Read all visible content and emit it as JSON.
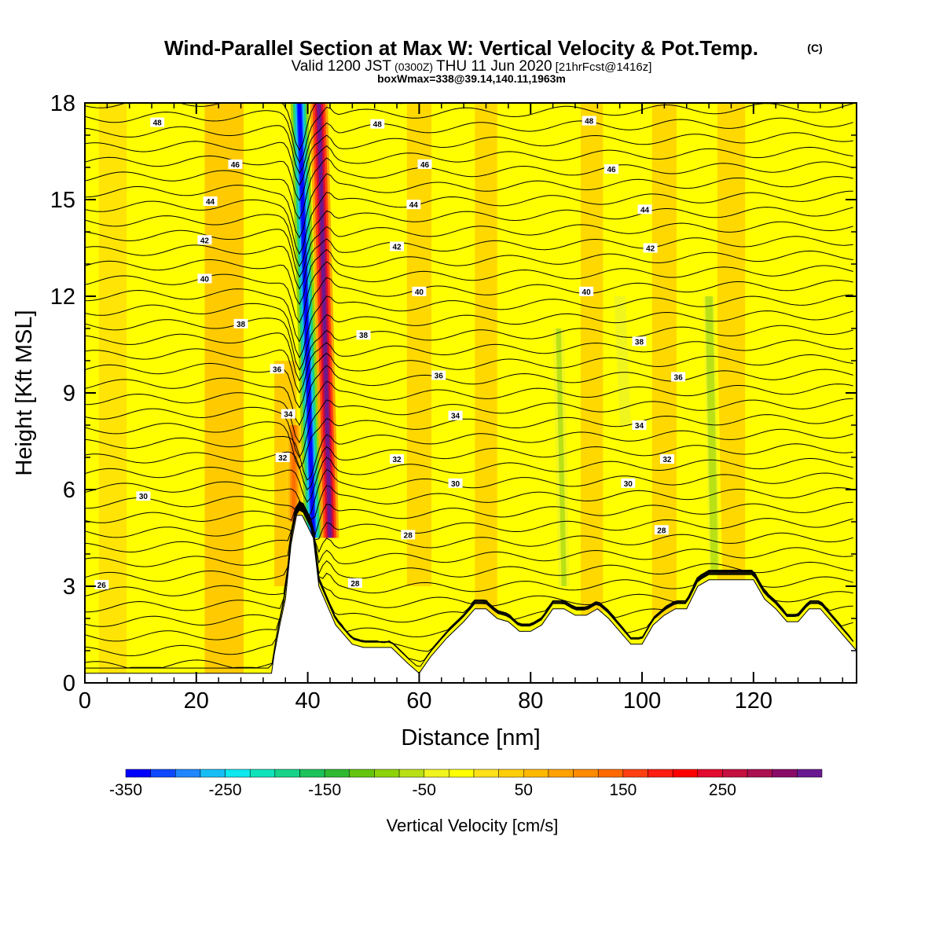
{
  "header": {
    "title": "Wind-Parallel Section at Max W: Vertical Velocity & Pot.Temp.",
    "title_unit": "(C)",
    "valid_prefix": "Valid 1200 JST",
    "valid_utc": "(0300Z)",
    "valid_date": "THU 11 Jun 2020",
    "forecast": "[21hrFcst@1416z]",
    "boxwmax": "boxWmax=338@39.14,140.11,1963m"
  },
  "chart_data": {
    "type": "heatmap",
    "xlabel": "Distance [nm]",
    "ylabel": "Height [Kft MSL]",
    "xlim": [
      0,
      138.5
    ],
    "ylim": [
      0,
      18
    ],
    "x_ticks": [
      0,
      20,
      40,
      60,
      80,
      100,
      120
    ],
    "y_ticks": [
      0,
      3,
      6,
      9,
      12,
      15,
      18
    ],
    "colorbar": {
      "label": "Vertical Velocity [cm/s]",
      "range": [
        -350,
        325
      ],
      "step": 25,
      "tick_labels": [
        "-350",
        "-250",
        "-150",
        "-50",
        "50",
        "150",
        "250"
      ],
      "tick_values": [
        -350,
        -250,
        -150,
        -50,
        50,
        150,
        250
      ],
      "colors": [
        "#0000ff",
        "#0d48ff",
        "#1f86ff",
        "#17bef5",
        "#0ee8ee",
        "#10e3b9",
        "#16d389",
        "#1cc25a",
        "#2fb932",
        "#66c50f",
        "#8ed20a",
        "#b8e015",
        "#f0f41f",
        "#ffff00",
        "#ffe11a",
        "#ffce0a",
        "#ffb800",
        "#ffa100",
        "#ff8a00",
        "#ff6a00",
        "#ff3f12",
        "#ff1c12",
        "#ff0000",
        "#e20a2e",
        "#c4103f",
        "#ab1050",
        "#8a0a67",
        "#6a1890"
      ]
    },
    "terrain_profile": {
      "x": [
        0,
        33.5,
        34,
        35,
        36,
        37,
        38,
        39,
        41,
        42,
        43,
        44,
        45,
        48,
        50,
        55,
        58,
        60,
        62,
        65,
        68,
        70,
        72,
        74,
        76,
        78,
        80,
        82,
        84,
        86,
        88,
        90,
        92,
        94,
        96,
        98,
        100,
        102,
        104,
        106,
        108,
        110,
        112,
        114,
        116,
        118,
        120,
        122,
        124,
        126,
        128,
        130,
        132,
        134,
        136,
        138.5
      ],
      "height_kft": [
        0.3,
        0.3,
        0.9,
        1.8,
        2.6,
        4.3,
        5.2,
        5.2,
        4.5,
        3.0,
        2.6,
        2.2,
        1.8,
        1.2,
        1.1,
        1.1,
        0.6,
        0.3,
        0.8,
        1.4,
        1.9,
        2.3,
        2.3,
        2.0,
        1.9,
        1.6,
        1.6,
        1.8,
        2.3,
        2.3,
        2.1,
        2.1,
        2.3,
        2.0,
        1.6,
        1.2,
        1.2,
        1.8,
        2.1,
        2.3,
        2.3,
        3.0,
        3.2,
        3.2,
        3.2,
        3.2,
        3.2,
        2.6,
        2.3,
        1.9,
        1.9,
        2.3,
        2.3,
        1.9,
        1.5,
        1.0
      ]
    },
    "velocity_features": [
      {
        "name": "upslope updraft",
        "x_center": 37.5,
        "z_bottom": 5,
        "z_top": 8,
        "w": 140
      },
      {
        "name": "downdraft",
        "x_bottom": 41,
        "x_top": 38.5,
        "z_bottom": 4.5,
        "z_top": 18,
        "w": -350
      },
      {
        "name": "max updraft",
        "x_bottom": 44,
        "x_top": 42,
        "z_bottom": 4.5,
        "z_top": 18,
        "w": 338
      },
      {
        "name": "weak downdraft",
        "x_center": 86,
        "z_bottom": 3,
        "z_top": 11,
        "w": -60
      },
      {
        "name": "weak downdraft",
        "x_center": 97,
        "z_bottom": 8,
        "z_top": 12,
        "w": -50
      },
      {
        "name": "weak downdraft",
        "x_center": 113,
        "z_bottom": 3.5,
        "z_top": 12,
        "w": -70
      }
    ],
    "theta_contours": {
      "label_values": [
        26,
        28,
        30,
        32,
        34,
        36,
        38,
        40,
        42,
        44,
        46,
        48
      ],
      "labels": [
        {
          "text": "48",
          "x": 13,
          "y": 17.4
        },
        {
          "text": "48",
          "x": 52.5,
          "y": 17.35
        },
        {
          "text": "48",
          "x": 90.5,
          "y": 17.45
        },
        {
          "text": "46",
          "x": 27,
          "y": 16.1
        },
        {
          "text": "46",
          "x": 61,
          "y": 16.1
        },
        {
          "text": "46",
          "x": 94.5,
          "y": 15.95
        },
        {
          "text": "44",
          "x": 22.5,
          "y": 14.95
        },
        {
          "text": "44",
          "x": 59,
          "y": 14.85
        },
        {
          "text": "44",
          "x": 100.5,
          "y": 14.7
        },
        {
          "text": "42",
          "x": 21.5,
          "y": 13.75
        },
        {
          "text": "42",
          "x": 56,
          "y": 13.55
        },
        {
          "text": "42",
          "x": 101.5,
          "y": 13.5
        },
        {
          "text": "40",
          "x": 21.5,
          "y": 12.55
        },
        {
          "text": "40",
          "x": 60,
          "y": 12.15
        },
        {
          "text": "40",
          "x": 90,
          "y": 12.15
        },
        {
          "text": "38",
          "x": 28,
          "y": 11.15
        },
        {
          "text": "38",
          "x": 50,
          "y": 10.8
        },
        {
          "text": "38",
          "x": 99.5,
          "y": 10.6
        },
        {
          "text": "36",
          "x": 34.5,
          "y": 9.75
        },
        {
          "text": "36",
          "x": 63.5,
          "y": 9.55
        },
        {
          "text": "36",
          "x": 106.5,
          "y": 9.5
        },
        {
          "text": "34",
          "x": 36.5,
          "y": 8.35
        },
        {
          "text": "34",
          "x": 66.5,
          "y": 8.3
        },
        {
          "text": "34",
          "x": 99.5,
          "y": 8.0
        },
        {
          "text": "32",
          "x": 35.5,
          "y": 7.0
        },
        {
          "text": "32",
          "x": 56,
          "y": 6.95
        },
        {
          "text": "32",
          "x": 104.5,
          "y": 6.95
        },
        {
          "text": "30",
          "x": 10.5,
          "y": 5.8
        },
        {
          "text": "30",
          "x": 66.5,
          "y": 6.2
        },
        {
          "text": "30",
          "x": 97.5,
          "y": 6.2
        },
        {
          "text": "28",
          "x": 58,
          "y": 4.6
        },
        {
          "text": "28",
          "x": 103.5,
          "y": 4.75
        },
        {
          "text": "28",
          "x": 48.5,
          "y": 3.1
        },
        {
          "text": "26",
          "x": 3,
          "y": 3.05
        }
      ]
    }
  }
}
